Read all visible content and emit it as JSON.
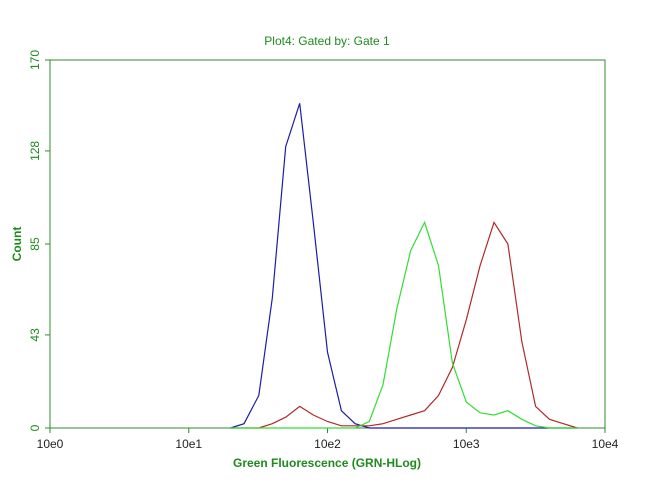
{
  "chart_data": {
    "type": "line",
    "title": "Plot4:  Gated by: Gate 1",
    "x_label": "Green Fluorescence (GRN-HLog)",
    "y_label": "Count",
    "x_log": true,
    "x": [
      20,
      25,
      32,
      40,
      50,
      63,
      79,
      100,
      126,
      158,
      200,
      251,
      316,
      398,
      501,
      631,
      794,
      1000,
      1259,
      1585,
      1995,
      2512,
      3162,
      3981,
      5012,
      6310
    ],
    "series": [
      {
        "color": "#1c1ca8",
        "values": [
          0,
          2,
          15,
          60,
          130,
          150,
          95,
          35,
          8,
          2,
          0,
          0,
          0,
          0,
          0,
          0,
          0,
          0,
          0,
          0,
          0,
          0,
          0,
          0,
          0,
          0
        ]
      },
      {
        "color": "#b02a2a",
        "values": [
          0,
          0,
          0,
          2,
          5,
          10,
          6,
          3,
          1,
          1,
          1,
          2,
          4,
          6,
          8,
          15,
          28,
          50,
          75,
          95,
          85,
          40,
          10,
          4,
          2,
          0
        ]
      },
      {
        "color": "#33dd33",
        "values": [
          0,
          0,
          0,
          0,
          0,
          0,
          0,
          0,
          0,
          0,
          3,
          20,
          55,
          82,
          95,
          75,
          30,
          12,
          7,
          6,
          8,
          4,
          1,
          0,
          0,
          0
        ]
      }
    ],
    "xlim": [
      1,
      10000
    ],
    "xticks": [
      {
        "value": 1,
        "label": "10e0"
      },
      {
        "value": 10,
        "label": "10e1"
      },
      {
        "value": 100,
        "label": "10e2"
      },
      {
        "value": 1000,
        "label": "10e3"
      },
      {
        "value": 10000,
        "label": "10e4"
      }
    ],
    "ylim": [
      0,
      170
    ],
    "yticks": [
      0,
      43,
      85,
      128,
      170
    ]
  }
}
